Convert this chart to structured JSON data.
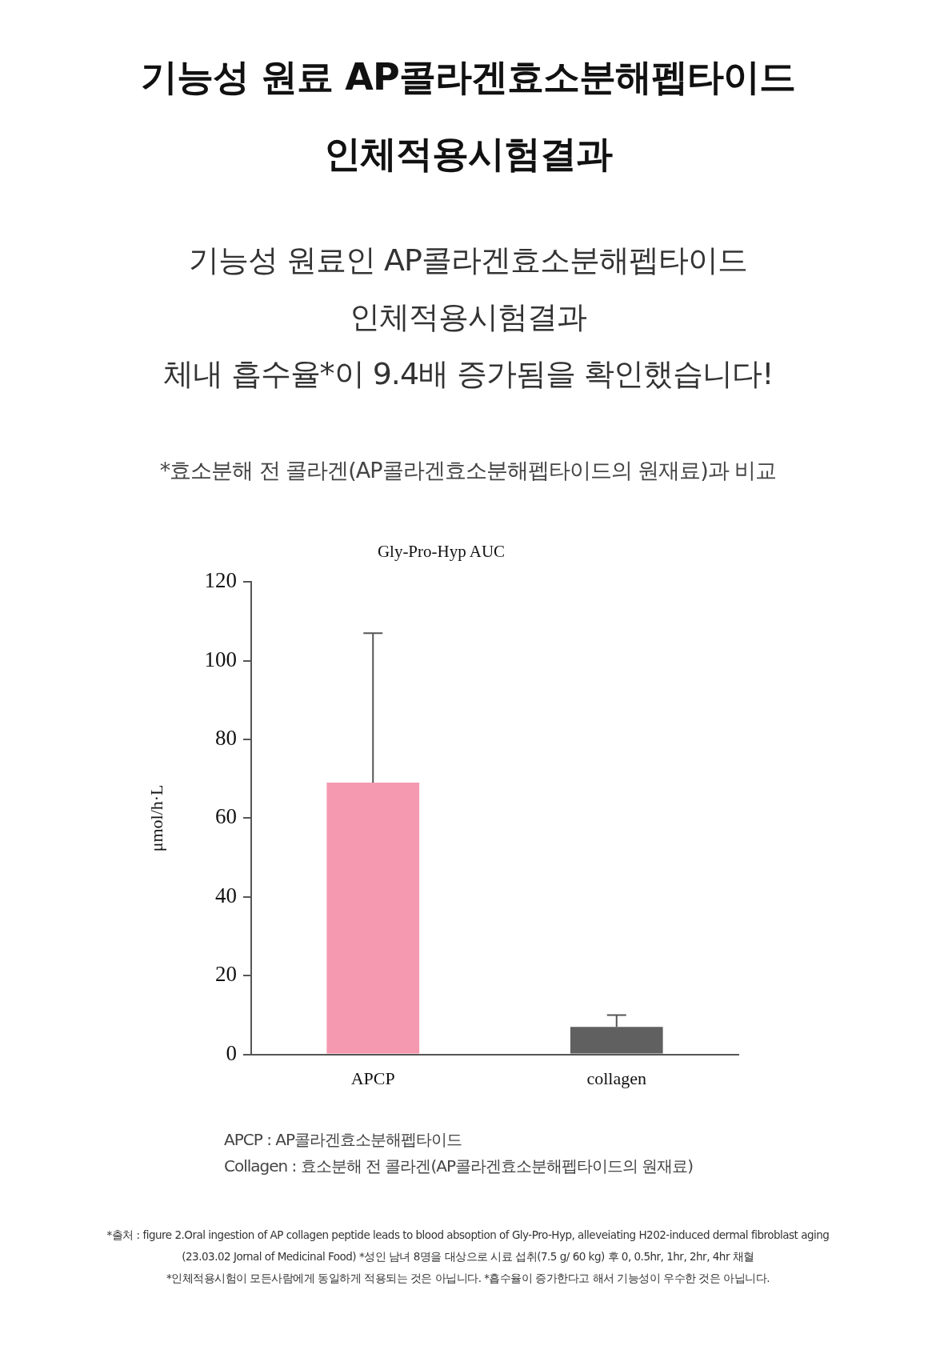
{
  "chart_data": {
    "type": "bar",
    "title": "기능성 원료 AP콜라겐효소분해펩타이드\n인체적용시험결과",
    "subtitle": "기능성 원료인 AP콜라겐효소분해펩타이드\n인체적용시험결과\n체내 흡수율*이 9.4배 증가됨을 확인했습니다!",
    "legend_title": "Gly-Pro-Hyp AUC",
    "ylabel": "μmol/h·L",
    "categories": [
      "APCP",
      "collagen"
    ],
    "values": [
      69,
      7
    ],
    "colors": [
      "#f599b0",
      "#606060"
    ],
    "errors": [
      [
        69,
        107
      ],
      [
        7,
        10
      ]
    ],
    "ylim": [
      0,
      120
    ],
    "yticks": [
      0,
      20,
      40,
      60,
      80,
      100,
      120
    ],
    "grid": false,
    "legend": false,
    "annotations": [
      "*효소분해 전 콜라겐(AP콜라겐효소분해펩타이드의 원재료)과 비교",
      "APCP : AP콜라겐효소분해펩타이드",
      "Collagen : 효소분해 전 콜라겐(AP콜라겐효소분해펩타이드의 원재료)",
      "*출처 : figure 2.Oral ingestion of AP collagen peptide leads to blood absoption of Gly-Pro-Hyp, alleveiating H202-induced dermal fibroblast aging",
      "(23.03.02 Jornal of Medicinal Food)  *성인 남녀 8명을 대상으로 시료 섭취(7.5 g/ 60 kg) 후 0, 0.5hr, 1hr, 2hr, 4hr 채혈",
      "*인체적용시험이 모든사람에게 동일하게 적용되는 것은 아닙니다. *흡수율이 증가한다고 해서 기능성이 우수한 것은 아닙니다."
    ]
  }
}
